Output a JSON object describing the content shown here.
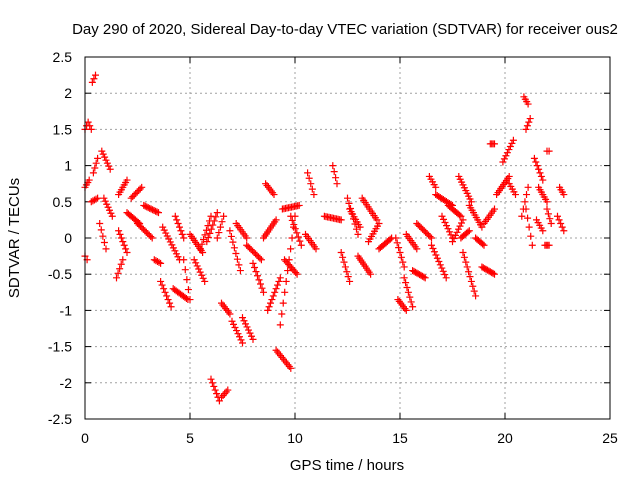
{
  "chart_data": {
    "type": "scatter",
    "title": "Day 290 of 2020, Sidereal Day-to-day VTEC variation (SDTVAR) for receiver ous2",
    "xlabel": "GPS time / hours",
    "ylabel": "SDTVAR / TECUs",
    "xlim": [
      0,
      25
    ],
    "ylim": [
      -2.5,
      2.5
    ],
    "x_ticks": [
      0,
      5,
      10,
      15,
      20,
      25
    ],
    "x_tick_labels": [
      "0",
      "5",
      "10",
      "15",
      "20",
      "25"
    ],
    "y_ticks": [
      -2.5,
      -2,
      -1.5,
      -1,
      -0.5,
      0,
      0.5,
      1,
      1.5,
      2,
      2.5
    ],
    "y_tick_labels": [
      "-2.5",
      "-2",
      "-1.5",
      "-1",
      "-0.5",
      "0",
      "0.5",
      "1",
      "1.5",
      "2",
      "2.5"
    ],
    "grid": true,
    "marker": "plus",
    "color": "#ff0000",
    "segments": [
      {
        "x": [
          0.0,
          0.15,
          0.3
        ],
        "y": [
          1.5,
          1.6,
          1.5
        ]
      },
      {
        "x": [
          0.0,
          0.1
        ],
        "y": [
          -0.25,
          -0.3
        ]
      },
      {
        "x": [
          0.0,
          0.2
        ],
        "y": [
          0.7,
          0.8
        ]
      },
      {
        "x": [
          0.35,
          0.5
        ],
        "y": [
          2.15,
          2.25
        ]
      },
      {
        "x": [
          0.3,
          0.6
        ],
        "y": [
          0.5,
          0.55
        ]
      },
      {
        "x": [
          0.4,
          0.6
        ],
        "y": [
          0.9,
          1.1
        ]
      },
      {
        "x": [
          0.8,
          1.2
        ],
        "y": [
          1.2,
          0.95
        ]
      },
      {
        "x": [
          0.7,
          1.0
        ],
        "y": [
          0.2,
          -0.15
        ]
      },
      {
        "x": [
          0.9,
          1.3
        ],
        "y": [
          0.55,
          0.3
        ]
      },
      {
        "x": [
          1.5,
          1.8
        ],
        "y": [
          -0.55,
          -0.3
        ]
      },
      {
        "x": [
          1.6,
          2.0
        ],
        "y": [
          0.6,
          0.8
        ]
      },
      {
        "x": [
          1.6,
          2.0
        ],
        "y": [
          0.1,
          -0.2
        ]
      },
      {
        "x": [
          2.0,
          2.6
        ],
        "y": [
          0.35,
          0.2
        ]
      },
      {
        "x": [
          2.2,
          2.7
        ],
        "y": [
          0.55,
          0.7
        ]
      },
      {
        "x": [
          2.8,
          3.5
        ],
        "y": [
          0.45,
          0.35
        ]
      },
      {
        "x": [
          2.5,
          3.2
        ],
        "y": [
          0.2,
          0.0
        ]
      },
      {
        "x": [
          3.3,
          3.6
        ],
        "y": [
          -0.3,
          -0.35
        ]
      },
      {
        "x": [
          3.6,
          4.1
        ],
        "y": [
          -0.6,
          -0.95
        ]
      },
      {
        "x": [
          3.7,
          4.5
        ],
        "y": [
          0.15,
          -0.3
        ]
      },
      {
        "x": [
          4.2,
          4.9
        ],
        "y": [
          -0.7,
          -0.85
        ]
      },
      {
        "x": [
          4.3,
          4.7
        ],
        "y": [
          0.3,
          0.0
        ]
      },
      {
        "x": [
          4.7,
          5.0
        ],
        "y": [
          -0.3,
          -0.85
        ]
      },
      {
        "x": [
          5.0,
          5.6
        ],
        "y": [
          0.05,
          -0.2
        ]
      },
      {
        "x": [
          5.2,
          5.7
        ],
        "y": [
          -0.3,
          -0.6
        ]
      },
      {
        "x": [
          5.5,
          6.0
        ],
        "y": [
          -0.15,
          0.3
        ]
      },
      {
        "x": [
          5.8,
          6.3
        ],
        "y": [
          -0.05,
          0.35
        ]
      },
      {
        "x": [
          6.3,
          6.6
        ],
        "y": [
          0.0,
          0.3
        ]
      },
      {
        "x": [
          6.0,
          6.4
        ],
        "y": [
          -1.95,
          -2.25
        ]
      },
      {
        "x": [
          6.5,
          6.8
        ],
        "y": [
          -2.2,
          -2.1
        ]
      },
      {
        "x": [
          6.5,
          6.9
        ],
        "y": [
          -0.9,
          -1.05
        ]
      },
      {
        "x": [
          6.9,
          7.4
        ],
        "y": [
          0.1,
          -0.45
        ]
      },
      {
        "x": [
          7.0,
          7.5
        ],
        "y": [
          -1.15,
          -1.45
        ]
      },
      {
        "x": [
          7.2,
          7.7
        ],
        "y": [
          0.2,
          0.0
        ]
      },
      {
        "x": [
          7.5,
          8.0
        ],
        "y": [
          -1.1,
          -1.4
        ]
      },
      {
        "x": [
          7.7,
          8.4
        ],
        "y": [
          -0.1,
          -0.3
        ]
      },
      {
        "x": [
          8.0,
          8.5
        ],
        "y": [
          -0.35,
          -0.75
        ]
      },
      {
        "x": [
          8.5,
          9.1
        ],
        "y": [
          0.0,
          0.25
        ]
      },
      {
        "x": [
          8.6,
          9.0
        ],
        "y": [
          0.75,
          0.6
        ]
      },
      {
        "x": [
          8.7,
          9.3
        ],
        "y": [
          -1.0,
          -0.55
        ]
      },
      {
        "x": [
          9.1,
          9.8
        ],
        "y": [
          -1.55,
          -1.8
        ]
      },
      {
        "x": [
          9.3,
          10.0
        ],
        "y": [
          -1.2,
          0.3
        ]
      },
      {
        "x": [
          9.4,
          10.2
        ],
        "y": [
          0.4,
          0.45
        ]
      },
      {
        "x": [
          9.5,
          10.1
        ],
        "y": [
          -0.3,
          -0.5
        ]
      },
      {
        "x": [
          9.8,
          10.3
        ],
        "y": [
          0.3,
          -0.1
        ]
      },
      {
        "x": [
          10.5,
          11.0
        ],
        "y": [
          0.05,
          -0.15
        ]
      },
      {
        "x": [
          10.6,
          10.9
        ],
        "y": [
          0.9,
          0.6
        ]
      },
      {
        "x": [
          11.4,
          12.2
        ],
        "y": [
          0.3,
          0.25
        ]
      },
      {
        "x": [
          11.8,
          12.0
        ],
        "y": [
          1.0,
          0.75
        ]
      },
      {
        "x": [
          12.2,
          12.6
        ],
        "y": [
          -0.2,
          -0.6
        ]
      },
      {
        "x": [
          12.5,
          13.0
        ],
        "y": [
          0.55,
          0.05
        ]
      },
      {
        "x": [
          12.6,
          13.1
        ],
        "y": [
          0.4,
          0.15
        ]
      },
      {
        "x": [
          13.0,
          13.6
        ],
        "y": [
          -0.25,
          -0.5
        ]
      },
      {
        "x": [
          13.2,
          13.9
        ],
        "y": [
          0.55,
          0.25
        ]
      },
      {
        "x": [
          13.5,
          14.0
        ],
        "y": [
          -0.05,
          0.2
        ]
      },
      {
        "x": [
          14.0,
          14.6
        ],
        "y": [
          -0.15,
          0.0
        ]
      },
      {
        "x": [
          14.8,
          15.2
        ],
        "y": [
          0.0,
          -0.4
        ]
      },
      {
        "x": [
          14.9,
          15.3
        ],
        "y": [
          -0.85,
          -1.0
        ]
      },
      {
        "x": [
          15.2,
          15.6
        ],
        "y": [
          -0.55,
          -0.95
        ]
      },
      {
        "x": [
          15.3,
          15.8
        ],
        "y": [
          0.05,
          -0.15
        ]
      },
      {
        "x": [
          15.6,
          16.2
        ],
        "y": [
          -0.45,
          -0.55
        ]
      },
      {
        "x": [
          15.8,
          16.5
        ],
        "y": [
          0.2,
          0.0
        ]
      },
      {
        "x": [
          16.4,
          16.7
        ],
        "y": [
          0.85,
          0.7
        ]
      },
      {
        "x": [
          16.5,
          17.2
        ],
        "y": [
          -0.1,
          -0.55
        ]
      },
      {
        "x": [
          16.7,
          17.5
        ],
        "y": [
          0.6,
          0.45
        ]
      },
      {
        "x": [
          17.0,
          17.5
        ],
        "y": [
          0.3,
          0.0
        ]
      },
      {
        "x": [
          17.3,
          17.9
        ],
        "y": [
          0.45,
          0.3
        ]
      },
      {
        "x": [
          17.5,
          18.0
        ],
        "y": [
          -0.05,
          0.25
        ]
      },
      {
        "x": [
          17.8,
          18.4
        ],
        "y": [
          0.85,
          0.5
        ]
      },
      {
        "x": [
          17.9,
          18.3
        ],
        "y": [
          0.0,
          0.1
        ]
      },
      {
        "x": [
          18.0,
          18.6
        ],
        "y": [
          -0.2,
          -0.8
        ]
      },
      {
        "x": [
          18.3,
          18.9
        ],
        "y": [
          0.45,
          0.15
        ]
      },
      {
        "x": [
          18.6,
          19.0
        ],
        "y": [
          0.0,
          -0.1
        ]
      },
      {
        "x": [
          18.9,
          19.5
        ],
        "y": [
          -0.4,
          -0.5
        ]
      },
      {
        "x": [
          19.0,
          19.5
        ],
        "y": [
          0.2,
          0.4
        ]
      },
      {
        "x": [
          19.3,
          19.5
        ],
        "y": [
          1.3,
          1.3
        ]
      },
      {
        "x": [
          19.6,
          20.2
        ],
        "y": [
          0.6,
          0.85
        ]
      },
      {
        "x": [
          19.9,
          20.4
        ],
        "y": [
          1.05,
          1.35
        ]
      },
      {
        "x": [
          20.2,
          20.5
        ],
        "y": [
          0.75,
          0.6
        ]
      },
      {
        "x": [
          20.8,
          21.1
        ],
        "y": [
          0.3,
          0.7
        ]
      },
      {
        "x": [
          20.9,
          21.1
        ],
        "y": [
          1.95,
          1.85
        ]
      },
      {
        "x": [
          21.0,
          21.2
        ],
        "y": [
          1.5,
          1.65
        ]
      },
      {
        "x": [
          21.0,
          21.3
        ],
        "y": [
          0.4,
          -0.1
        ]
      },
      {
        "x": [
          21.4,
          21.8
        ],
        "y": [
          1.1,
          0.8
        ]
      },
      {
        "x": [
          21.5,
          21.8
        ],
        "y": [
          0.25,
          0.1
        ]
      },
      {
        "x": [
          21.6,
          22.0
        ],
        "y": [
          0.7,
          0.5
        ]
      },
      {
        "x": [
          22.0,
          22.1
        ],
        "y": [
          1.2,
          1.2
        ]
      },
      {
        "x": [
          22.0,
          22.2
        ],
        "y": [
          0.4,
          0.2
        ]
      },
      {
        "x": [
          21.9,
          22.1
        ],
        "y": [
          -0.1,
          -0.1
        ]
      },
      {
        "x": [
          22.6,
          22.8
        ],
        "y": [
          0.7,
          0.6
        ]
      },
      {
        "x": [
          22.5,
          22.8
        ],
        "y": [
          0.3,
          0.1
        ]
      }
    ]
  }
}
